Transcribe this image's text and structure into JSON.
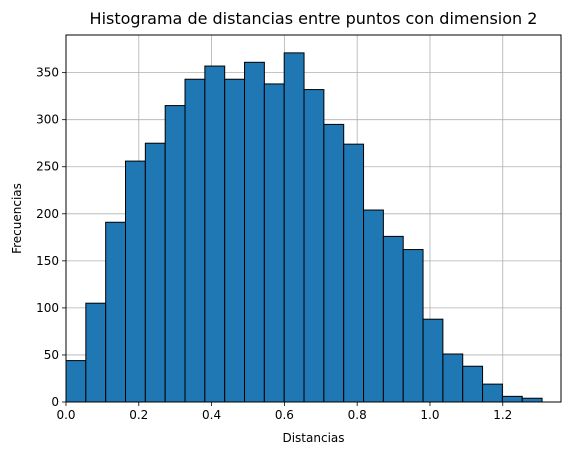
{
  "chart_data": {
    "type": "bar",
    "title": "Histograma de distancias entre puntos con dimension 2",
    "xlabel": "Distancias",
    "ylabel": "Frecuencias",
    "xlim": [
      0.0,
      1.36
    ],
    "ylim": [
      0,
      390
    ],
    "grid": true,
    "bar_color": "#1f77b4",
    "edge_color": "#000000",
    "bin_edges": [
      0.0,
      0.0545,
      0.109,
      0.1635,
      0.218,
      0.2725,
      0.327,
      0.3815,
      0.436,
      0.4905,
      0.545,
      0.5995,
      0.654,
      0.7085,
      0.763,
      0.8175,
      0.872,
      0.9265,
      0.981,
      1.0355,
      1.09,
      1.1445,
      1.199,
      1.2535,
      1.308
    ],
    "values": [
      44,
      105,
      191,
      256,
      275,
      315,
      343,
      357,
      343,
      361,
      338,
      371,
      332,
      295,
      274,
      204,
      176,
      162,
      88,
      51,
      38,
      19,
      6,
      4
    ],
    "x_ticks": [
      {
        "value": 0.0,
        "label": "0.0"
      },
      {
        "value": 0.2,
        "label": "0.2"
      },
      {
        "value": 0.4,
        "label": "0.4"
      },
      {
        "value": 0.6,
        "label": "0.6"
      },
      {
        "value": 0.8,
        "label": "0.8"
      },
      {
        "value": 1.0,
        "label": "1.0"
      },
      {
        "value": 1.2,
        "label": "1.2"
      }
    ],
    "y_ticks": [
      {
        "value": 0,
        "label": "0"
      },
      {
        "value": 50,
        "label": "50"
      },
      {
        "value": 100,
        "label": "100"
      },
      {
        "value": 150,
        "label": "150"
      },
      {
        "value": 200,
        "label": "200"
      },
      {
        "value": 250,
        "label": "250"
      },
      {
        "value": 300,
        "label": "300"
      },
      {
        "value": 350,
        "label": "350"
      }
    ]
  }
}
